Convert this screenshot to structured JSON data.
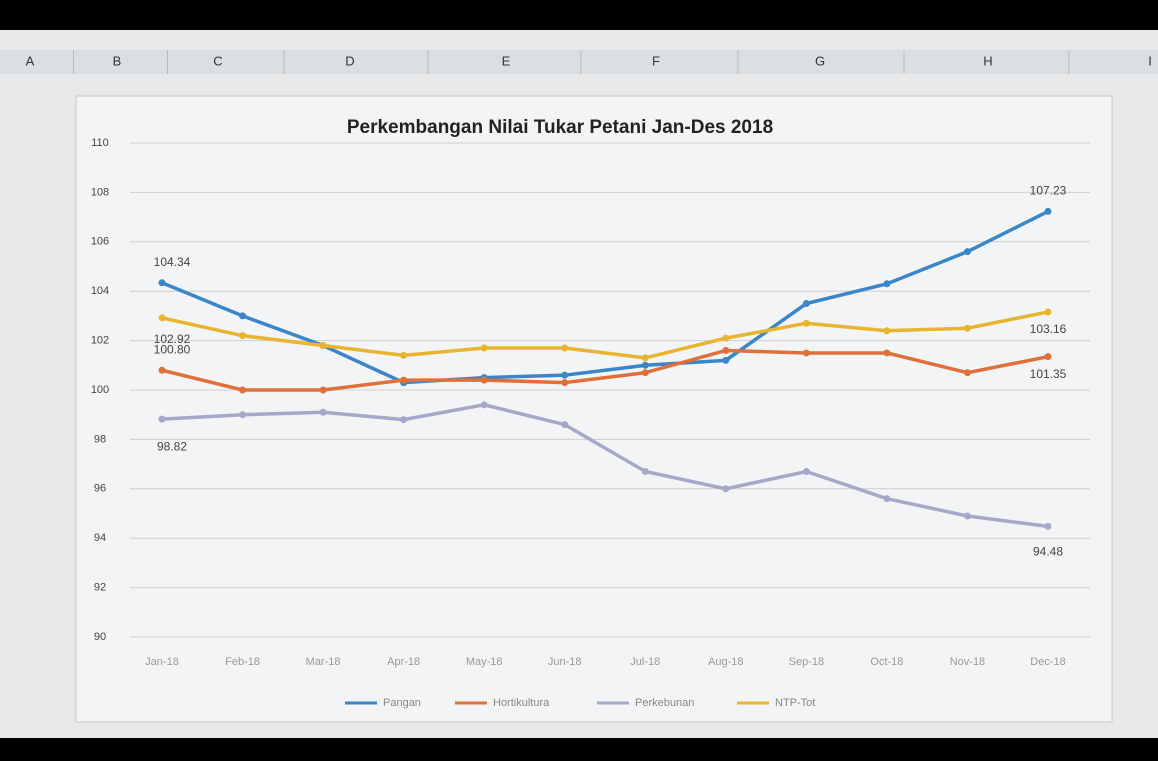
{
  "spreadsheet": {
    "columns": [
      "A",
      "B",
      "C",
      "D",
      "E",
      "F",
      "G",
      "H",
      "I"
    ]
  },
  "chart_data": {
    "type": "line",
    "title": "Perkembangan Nilai Tukar Petani Jan-Des 2018",
    "categories": [
      "Jan-18",
      "Feb-18",
      "Mar-18",
      "Apr-18",
      "May-18",
      "Jun-18",
      "Jul-18",
      "Aug-18",
      "Sep-18",
      "Oct-18",
      "Nov-18",
      "Dec-18"
    ],
    "series": [
      {
        "name": "Pangan",
        "color": "#3b86c8",
        "values": [
          104.34,
          103.0,
          101.8,
          100.3,
          100.5,
          100.6,
          101.0,
          101.2,
          103.5,
          104.3,
          105.6,
          107.23
        ],
        "value_labels": [
          "104.34",
          null,
          null,
          null,
          null,
          null,
          null,
          null,
          null,
          null,
          null,
          "107.23"
        ]
      },
      {
        "name": "Hortikultura",
        "color": "#e0703a",
        "values": [
          100.8,
          100.0,
          100.0,
          100.4,
          100.4,
          100.3,
          100.7,
          101.6,
          101.5,
          101.5,
          100.7,
          101.35
        ],
        "value_labels": [
          "100.80",
          null,
          null,
          null,
          null,
          null,
          null,
          null,
          null,
          null,
          null,
          "101.35"
        ]
      },
      {
        "name": "Perkebunan",
        "color": "#a7a7c9",
        "values": [
          98.82,
          99.0,
          99.1,
          98.8,
          99.4,
          98.6,
          96.7,
          96.0,
          96.7,
          95.6,
          94.9,
          94.48
        ],
        "value_labels": [
          "98.82",
          null,
          null,
          null,
          null,
          null,
          null,
          null,
          null,
          null,
          null,
          "94.48"
        ]
      },
      {
        "name": "NTP-Tot",
        "color": "#e9b531",
        "values": [
          102.92,
          102.2,
          101.8,
          101.4,
          101.7,
          101.7,
          101.3,
          102.1,
          102.7,
          102.4,
          102.5,
          103.16
        ],
        "value_labels": [
          "102.92",
          null,
          null,
          null,
          null,
          null,
          null,
          null,
          null,
          null,
          null,
          "103.16"
        ]
      }
    ],
    "ylim": [
      90,
      110
    ],
    "yticks": [
      90,
      92,
      94,
      96,
      98,
      100,
      102,
      104,
      106,
      108,
      110
    ],
    "grid": true,
    "legend": "bottom"
  }
}
